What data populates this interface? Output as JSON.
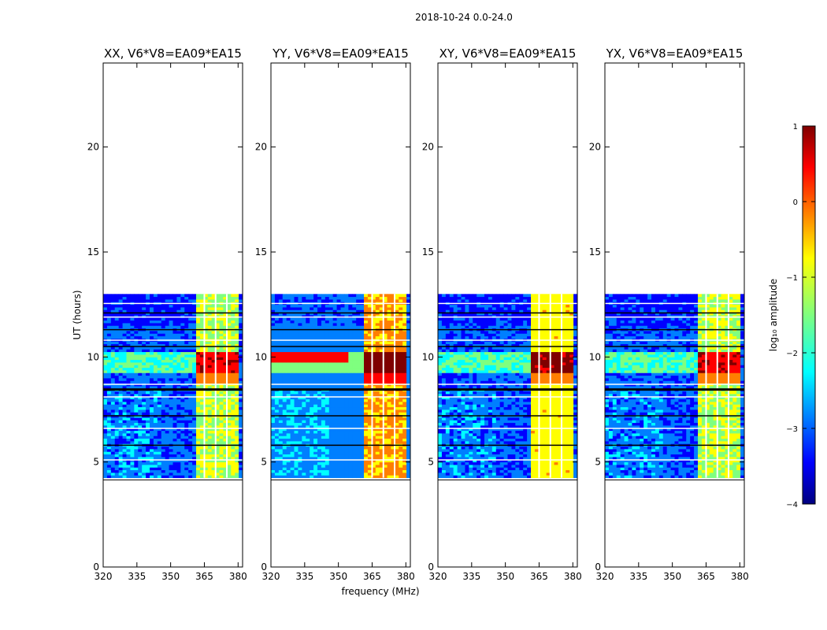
{
  "figure_title": "2018-10-24 0.0-24.0",
  "panel_titles": [
    "XX, V6*V8=EA09*EA15",
    "YY, V6*V8=EA09*EA15",
    "XY, V6*V8=EA09*EA15",
    "YX, V6*V8=EA09*EA15"
  ],
  "colors": {
    "jet": [
      "#00007f",
      "#0000ff",
      "#007fff",
      "#00ffff",
      "#7fff7f",
      "#ffff00",
      "#ff7f00",
      "#ff0000",
      "#7f0000"
    ],
    "gap": "#ffffff",
    "frame": "#000000"
  },
  "chart_data": {
    "type": "heatmap",
    "title": "2018-10-24 0.0-24.0",
    "xlabel": "frequency (MHz)",
    "ylabel": "UT (hours)",
    "xlim": [
      320,
      382
    ],
    "ylim": [
      0,
      24
    ],
    "x_ticks": [
      320,
      335,
      350,
      365,
      380
    ],
    "x_tick_labels": [
      "320",
      "335",
      "350",
      "365",
      "380"
    ],
    "y_ticks": [
      0,
      5,
      10,
      15,
      20
    ],
    "y_tick_labels": [
      "0",
      "5",
      "10",
      "15",
      "20"
    ],
    "data_time_range_hours": [
      4.25,
      13.0
    ],
    "gap_time_range_hours": [
      4.15,
      4.25
    ],
    "band_freq_range_mhz": [
      361,
      380
    ],
    "colorbar": {
      "label": "log₁₀ amplitude",
      "range": [
        -4,
        1
      ],
      "ticks": [
        1,
        0,
        -1,
        -2,
        -3,
        -4
      ],
      "tick_labels": [
        "1",
        "0",
        "−1",
        "−2",
        "−3",
        "−4"
      ]
    },
    "panels": [
      {
        "name": "XX",
        "title": "XX, V6*V8=EA09*EA15",
        "background_log_amplitude": -3.0,
        "band_log_amplitude": -1.2,
        "flare_log_amplitude": 0.6
      },
      {
        "name": "YY",
        "title": "YY, V6*V8=EA09*EA15",
        "background_log_amplitude": -2.8,
        "band_log_amplitude": -0.5,
        "flare_log_amplitude": 0.9
      },
      {
        "name": "XY",
        "title": "XY, V6*V8=EA09*EA15",
        "background_log_amplitude": -3.0,
        "band_log_amplitude": -0.8,
        "flare_log_amplitude": 0.8
      },
      {
        "name": "YX",
        "title": "YX, V6*V8=EA09*EA15",
        "background_log_amplitude": -3.0,
        "band_log_amplitude": -1.2,
        "flare_log_amplitude": 0.6
      }
    ]
  }
}
